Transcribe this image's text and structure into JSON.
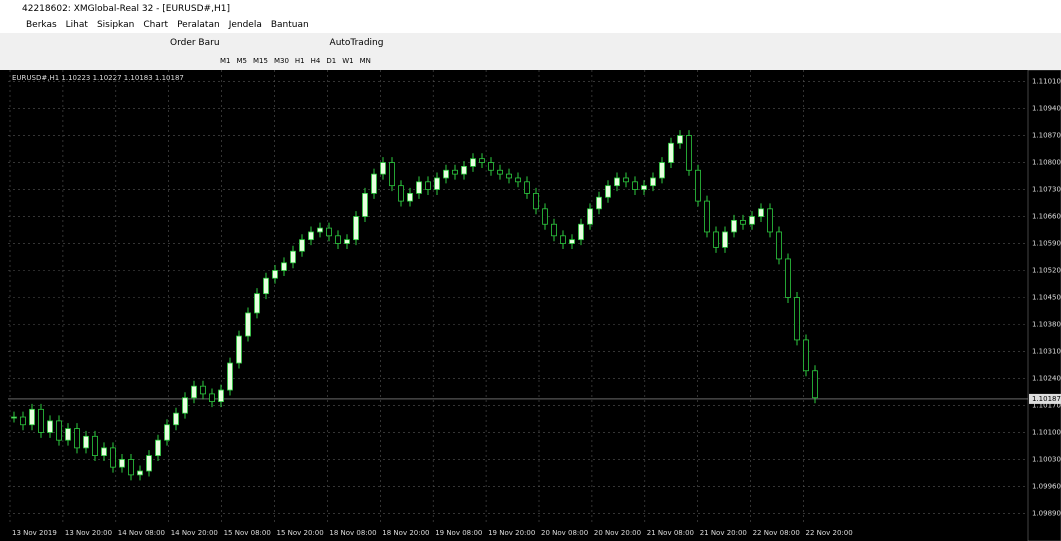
{
  "window": {
    "title": "42218602: XMGlobal-Real 32 - [EURUSD#,H1]"
  },
  "menu": [
    "Berkas",
    "Lihat",
    "Sisipkan",
    "Chart",
    "Peralatan",
    "Jendela",
    "Bantuan"
  ],
  "toolbar": {
    "order": "Order Baru",
    "autotrading": "AutoTrading",
    "timeframes": [
      "M1",
      "M5",
      "M15",
      "M30",
      "H1",
      "H4",
      "D1",
      "W1",
      "MN"
    ]
  },
  "chart": {
    "header": "EURUSD#,H1  1.10223 1.10227 1.10183 1.10187",
    "current_price": {
      "value": 1.10187,
      "label": "1.10187"
    },
    "ylim": [
      1.0986,
      1.1104
    ],
    "yticks": [
      {
        "value": 1.1101,
        "label": "1.11010"
      },
      {
        "value": 1.1094,
        "label": "1.10940"
      },
      {
        "value": 1.1087,
        "label": "1.10870"
      },
      {
        "value": 1.108,
        "label": "1.10800"
      },
      {
        "value": 1.1073,
        "label": "1.10730"
      },
      {
        "value": 1.1066,
        "label": "1.10660"
      },
      {
        "value": 1.1059,
        "label": "1.10590"
      },
      {
        "value": 1.1052,
        "label": "1.10520"
      },
      {
        "value": 1.1045,
        "label": "1.10450"
      },
      {
        "value": 1.1038,
        "label": "1.10380"
      },
      {
        "value": 1.1031,
        "label": "1.10310"
      },
      {
        "value": 1.1024,
        "label": "1.10240"
      },
      {
        "value": 1.1017,
        "label": "1.10170"
      },
      {
        "value": 1.101,
        "label": "1.10100"
      },
      {
        "value": 1.1003,
        "label": "1.10030"
      },
      {
        "value": 1.0996,
        "label": "1.09960"
      },
      {
        "value": 1.0989,
        "label": "1.09890"
      }
    ],
    "xlabels": [
      "13 Nov 2019",
      "13 Nov 20:00",
      "14 Nov 08:00",
      "14 Nov 20:00",
      "15 Nov 08:00",
      "15 Nov 20:00",
      "18 Nov 08:00",
      "18 Nov 20:00",
      "19 Nov 08:00",
      "19 Nov 20:00",
      "20 Nov 08:00",
      "20 Nov 20:00",
      "21 Nov 08:00",
      "21 Nov 20:00",
      "22 Nov 08:00",
      "22 Nov 20:00"
    ],
    "closes": [
      1.1014,
      1.1012,
      1.1016,
      1.101,
      1.1013,
      1.1008,
      1.1011,
      1.1006,
      1.1009,
      1.1004,
      1.1006,
      1.1001,
      1.1003,
      1.0999,
      1.1,
      1.1004,
      1.1008,
      1.1012,
      1.1015,
      1.1019,
      1.1022,
      1.102,
      1.1018,
      1.1021,
      1.1028,
      1.1035,
      1.1041,
      1.1046,
      1.105,
      1.1052,
      1.1054,
      1.1057,
      1.106,
      1.1062,
      1.1063,
      1.1061,
      1.1059,
      1.106,
      1.1066,
      1.1072,
      1.1077,
      1.108,
      1.1074,
      1.107,
      1.1072,
      1.1075,
      1.1073,
      1.1076,
      1.1078,
      1.1077,
      1.1079,
      1.1081,
      1.108,
      1.1078,
      1.1077,
      1.1076,
      1.1075,
      1.1072,
      1.1068,
      1.1064,
      1.1061,
      1.1059,
      1.106,
      1.1064,
      1.1068,
      1.1071,
      1.1074,
      1.1076,
      1.1075,
      1.1073,
      1.1074,
      1.1076,
      1.108,
      1.1085,
      1.1087,
      1.1078,
      1.107,
      1.1062,
      1.1058,
      1.1062,
      1.1065,
      1.1064,
      1.1066,
      1.1068,
      1.1062,
      1.1055,
      1.1045,
      1.1034,
      1.1026,
      1.1019
    ]
  }
}
